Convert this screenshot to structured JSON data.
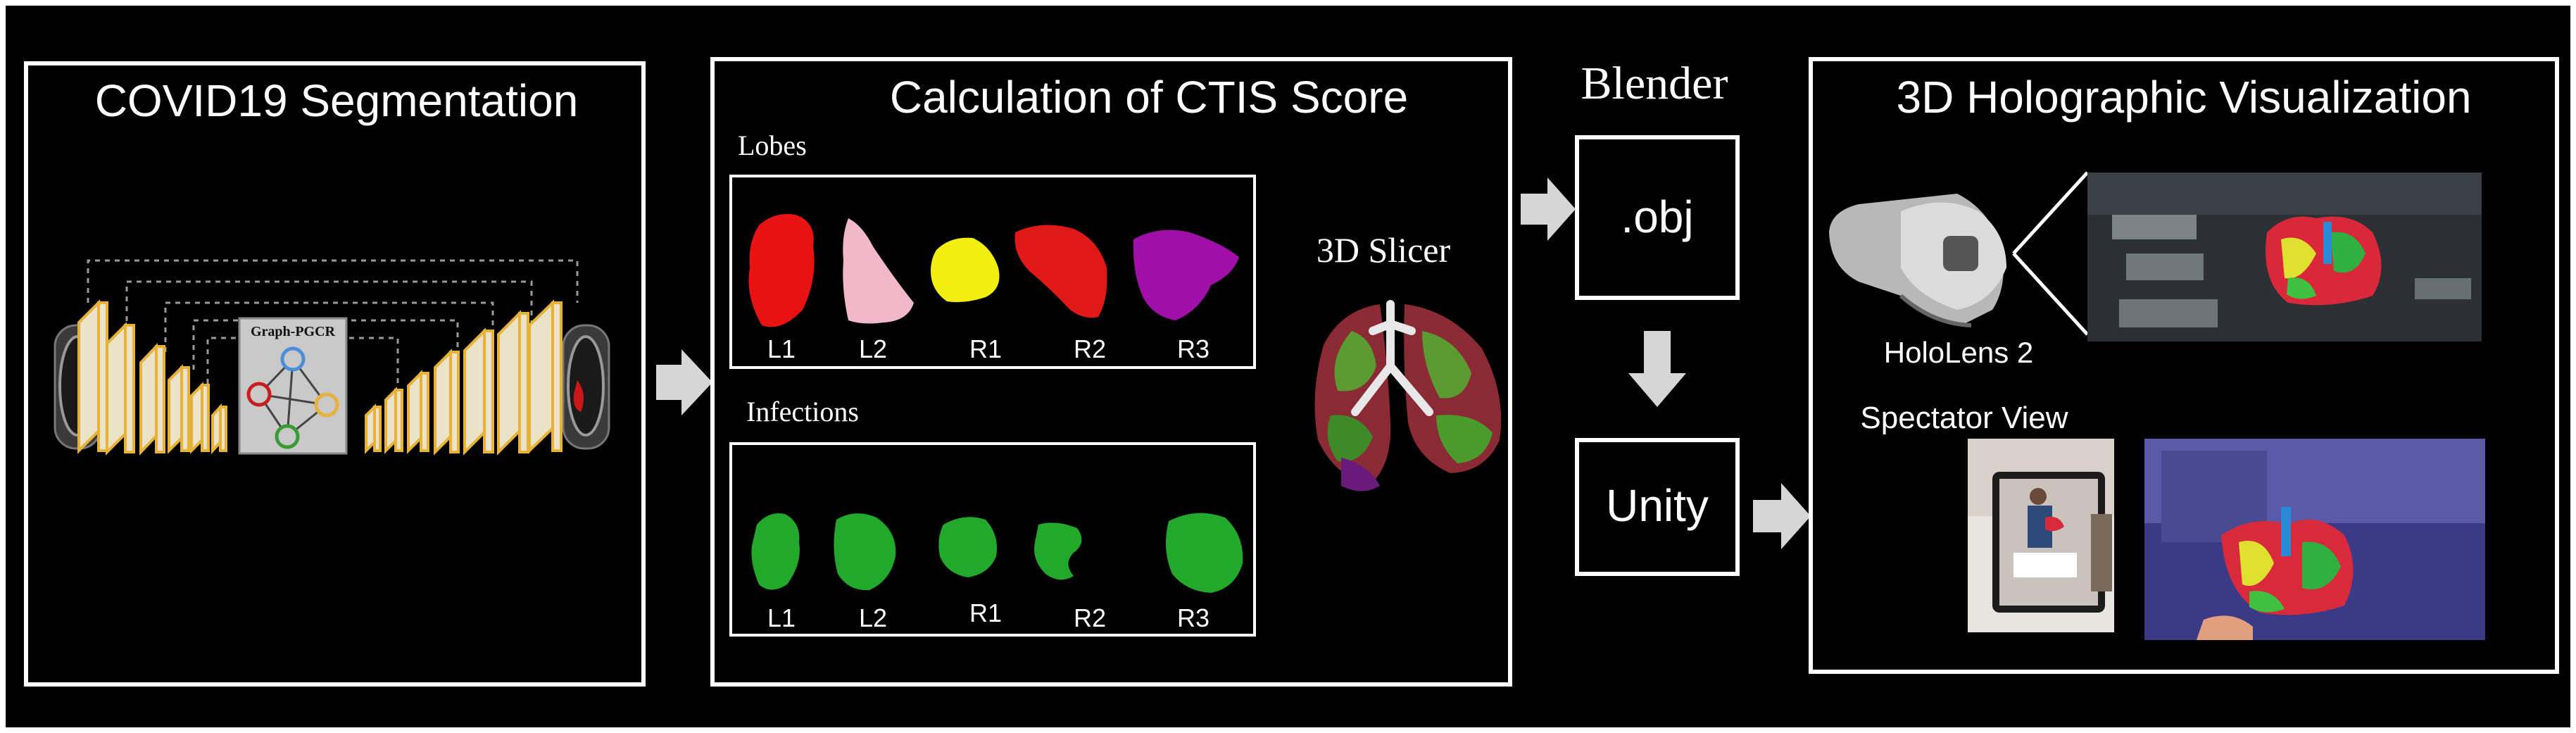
{
  "panels": {
    "segmentation": {
      "title": "COVID19 Segmentation",
      "module_label": "Graph-PGCR"
    },
    "ctis": {
      "title": "Calculation of CTIS Score",
      "lobes_label": "Lobes",
      "infections_label": "Infections",
      "lobe_labels": [
        "L1",
        "L2",
        "R1",
        "R2",
        "R3"
      ],
      "infection_labels": [
        "L1",
        "L2",
        "R1",
        "R2",
        "R3"
      ],
      "slicer_label": "3D Slicer",
      "lobe_colors": [
        "#e81212",
        "#f0b8c8",
        "#f2ef10",
        "#e01818",
        "#a010a8"
      ],
      "infection_color": "#22a82a"
    },
    "blender": {
      "title": "Blender",
      "obj_label": ".obj",
      "unity_label": "Unity"
    },
    "holo": {
      "title": "3D Holographic Visualization",
      "hololens_label": "HoloLens 2",
      "spectator_label": "Spectator View"
    }
  },
  "colors": {
    "background": "#000000",
    "frame": "#ffffff",
    "arrow": "#d6d6d6",
    "conv_block": "#ebe3c8",
    "conv_edge": "#e7b23a"
  }
}
